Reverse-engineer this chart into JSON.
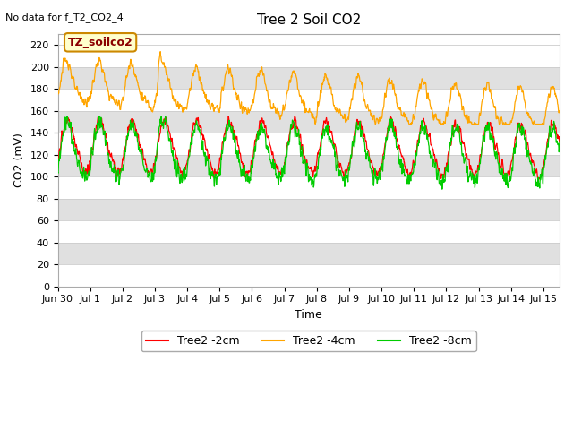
{
  "title": "Tree 2 Soil CO2",
  "no_data_text": "No data for f_T2_CO2_4",
  "annotation_box": "TZ_soilco2",
  "xlabel": "Time",
  "ylabel": "CO2 (mV)",
  "ylim": [
    0,
    230
  ],
  "yticks": [
    0,
    20,
    40,
    60,
    80,
    100,
    120,
    140,
    160,
    180,
    200,
    220
  ],
  "xtick_labels": [
    "Jun 30",
    "Jul 1",
    "Jul 2",
    "Jul 3",
    "Jul 4",
    "Jul 5",
    "Jul 6",
    "Jul 7",
    "Jul 8",
    "Jul 9",
    "Jul 10",
    "Jul 11",
    "Jul 12",
    "Jul 13",
    "Jul 14",
    "Jul 15"
  ],
  "n_days": 15.5,
  "colors": {
    "red": "#FF0000",
    "orange": "#FFA500",
    "green": "#00CC00",
    "grid": "#CCCCCC",
    "band_white": "#FFFFFF",
    "band_gray": "#E0E0E0",
    "annotation_bg": "#FFFFCC",
    "annotation_border": "#CC8800",
    "annotation_text": "#8B0000"
  },
  "legend": [
    {
      "label": "Tree2 -2cm",
      "color": "#FF0000"
    },
    {
      "label": "Tree2 -4cm",
      "color": "#FFA500"
    },
    {
      "label": "Tree2 -8cm",
      "color": "#00CC00"
    }
  ],
  "figsize": [
    6.4,
    4.8
  ],
  "dpi": 100
}
